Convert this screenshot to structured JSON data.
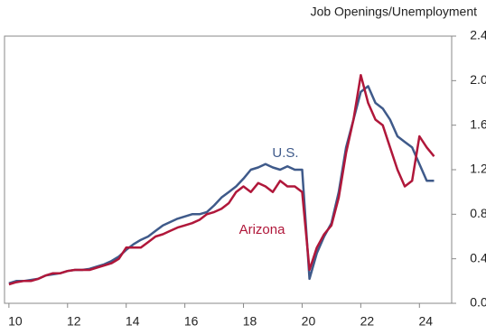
{
  "chart_data": {
    "type": "line",
    "title": "Job Openings/Unemployment",
    "x": [
      2010,
      2010.25,
      2010.5,
      2010.75,
      2011,
      2011.25,
      2011.5,
      2011.75,
      2012,
      2012.25,
      2012.5,
      2012.75,
      2013,
      2013.25,
      2013.5,
      2013.75,
      2014,
      2014.25,
      2014.5,
      2014.75,
      2015,
      2015.25,
      2015.5,
      2015.75,
      2016,
      2016.25,
      2016.5,
      2016.75,
      2017,
      2017.25,
      2017.5,
      2017.75,
      2018,
      2018.25,
      2018.5,
      2018.75,
      2019,
      2019.25,
      2019.5,
      2019.75,
      2020,
      2020.25,
      2020.5,
      2020.75,
      2021,
      2021.25,
      2021.5,
      2021.75,
      2022,
      2022.25,
      2022.5,
      2022.75,
      2023,
      2023.25,
      2023.5,
      2023.75,
      2024,
      2024.25,
      2024.5
    ],
    "series": [
      {
        "name": "U.S.",
        "color": "#3f5a8a",
        "values": [
          0.18,
          0.2,
          0.2,
          0.21,
          0.22,
          0.25,
          0.26,
          0.27,
          0.29,
          0.3,
          0.3,
          0.31,
          0.33,
          0.35,
          0.38,
          0.42,
          0.48,
          0.53,
          0.57,
          0.6,
          0.65,
          0.7,
          0.73,
          0.76,
          0.78,
          0.8,
          0.8,
          0.82,
          0.88,
          0.95,
          1.0,
          1.05,
          1.12,
          1.2,
          1.22,
          1.25,
          1.22,
          1.2,
          1.23,
          1.2,
          1.2,
          0.22,
          0.45,
          0.6,
          0.72,
          1.0,
          1.4,
          1.65,
          1.9,
          1.95,
          1.8,
          1.75,
          1.65,
          1.5,
          1.45,
          1.4,
          1.25,
          1.1,
          1.1
        ]
      },
      {
        "name": "Arizona",
        "color": "#b0173a",
        "values": [
          0.17,
          0.19,
          0.2,
          0.2,
          0.22,
          0.25,
          0.27,
          0.27,
          0.29,
          0.3,
          0.3,
          0.3,
          0.32,
          0.34,
          0.36,
          0.4,
          0.5,
          0.5,
          0.5,
          0.55,
          0.6,
          0.62,
          0.65,
          0.68,
          0.7,
          0.72,
          0.75,
          0.8,
          0.82,
          0.85,
          0.9,
          1.0,
          1.05,
          1.0,
          1.08,
          1.05,
          1.0,
          1.1,
          1.05,
          1.05,
          1.0,
          0.3,
          0.5,
          0.62,
          0.7,
          0.95,
          1.35,
          1.65,
          2.05,
          1.8,
          1.65,
          1.6,
          1.4,
          1.2,
          1.05,
          1.1,
          1.5,
          1.4,
          1.32
        ]
      }
    ],
    "xlim": [
      2009.85,
      2025.1
    ],
    "xticks": [
      {
        "value": 2010,
        "label": "10"
      },
      {
        "value": 2012,
        "label": "12"
      },
      {
        "value": 2014,
        "label": "14"
      },
      {
        "value": 2016,
        "label": "16"
      },
      {
        "value": 2018,
        "label": "18"
      },
      {
        "value": 2020,
        "label": "20"
      },
      {
        "value": 2022,
        "label": "22"
      },
      {
        "value": 2024,
        "label": "24"
      }
    ],
    "ylim": [
      0,
      2.4
    ],
    "yticks": [
      {
        "value": 0,
        "label": "0.0"
      },
      {
        "value": 0.4,
        "label": "0.4"
      },
      {
        "value": 0.8,
        "label": "0.8"
      },
      {
        "value": 1.2,
        "label": "1.2"
      },
      {
        "value": 1.6,
        "label": "1.6"
      },
      {
        "value": 2.0,
        "label": "2.0"
      },
      {
        "value": 2.4,
        "label": "2.4"
      }
    ],
    "grid": false
  }
}
